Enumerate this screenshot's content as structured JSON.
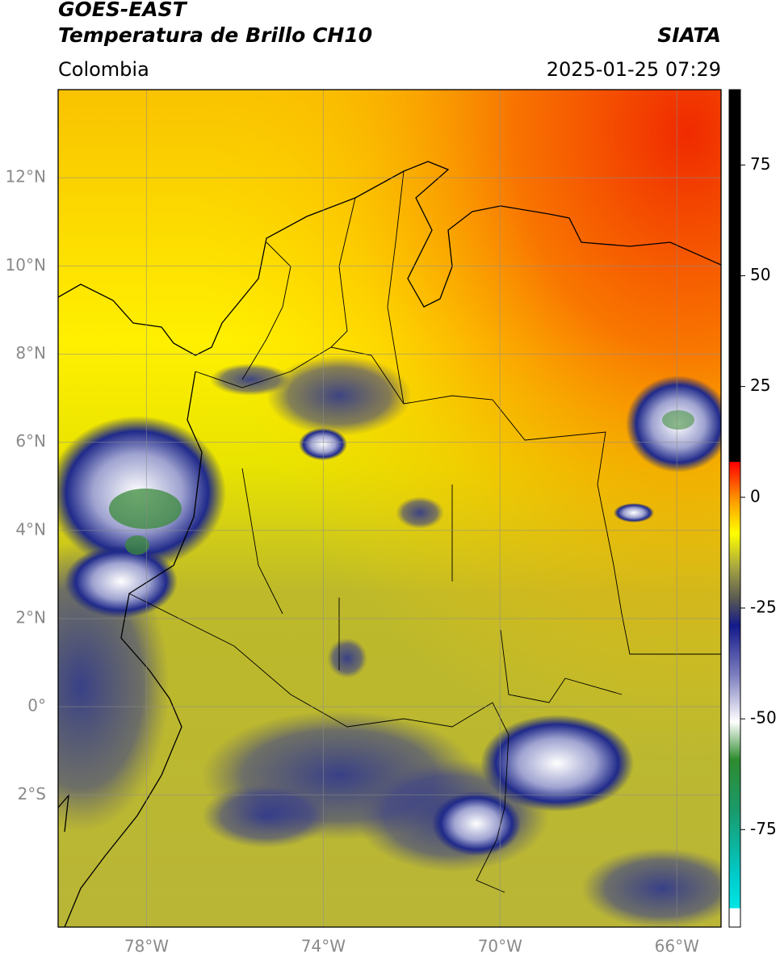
{
  "header": {
    "satellite": "GOES-EAST",
    "product": "Temperatura de Brillo CH10",
    "source": "SIATA",
    "region": "Colombia",
    "datetime": "2025-01-25 07:29"
  },
  "map": {
    "xlim": [
      -80,
      -65
    ],
    "ylim": [
      -5,
      14
    ],
    "xticks": [
      {
        "value": -78,
        "label": "78°W"
      },
      {
        "value": -74,
        "label": "74°W"
      },
      {
        "value": -70,
        "label": "70°W"
      },
      {
        "value": -66,
        "label": "66°W"
      }
    ],
    "yticks": [
      {
        "value": 12,
        "label": "12°N"
      },
      {
        "value": 10,
        "label": "10°N"
      },
      {
        "value": 8,
        "label": "8°N"
      },
      {
        "value": 6,
        "label": "6°N"
      },
      {
        "value": 4,
        "label": "4°N"
      },
      {
        "value": 2,
        "label": "2°N"
      },
      {
        "value": 0,
        "label": "0°"
      },
      {
        "value": -2,
        "label": "2°S"
      }
    ],
    "grid": true
  },
  "colorbar": {
    "lim": [
      -97,
      92
    ],
    "ticks": [
      -75,
      -50,
      -25,
      0,
      25,
      50,
      75
    ]
  }
}
